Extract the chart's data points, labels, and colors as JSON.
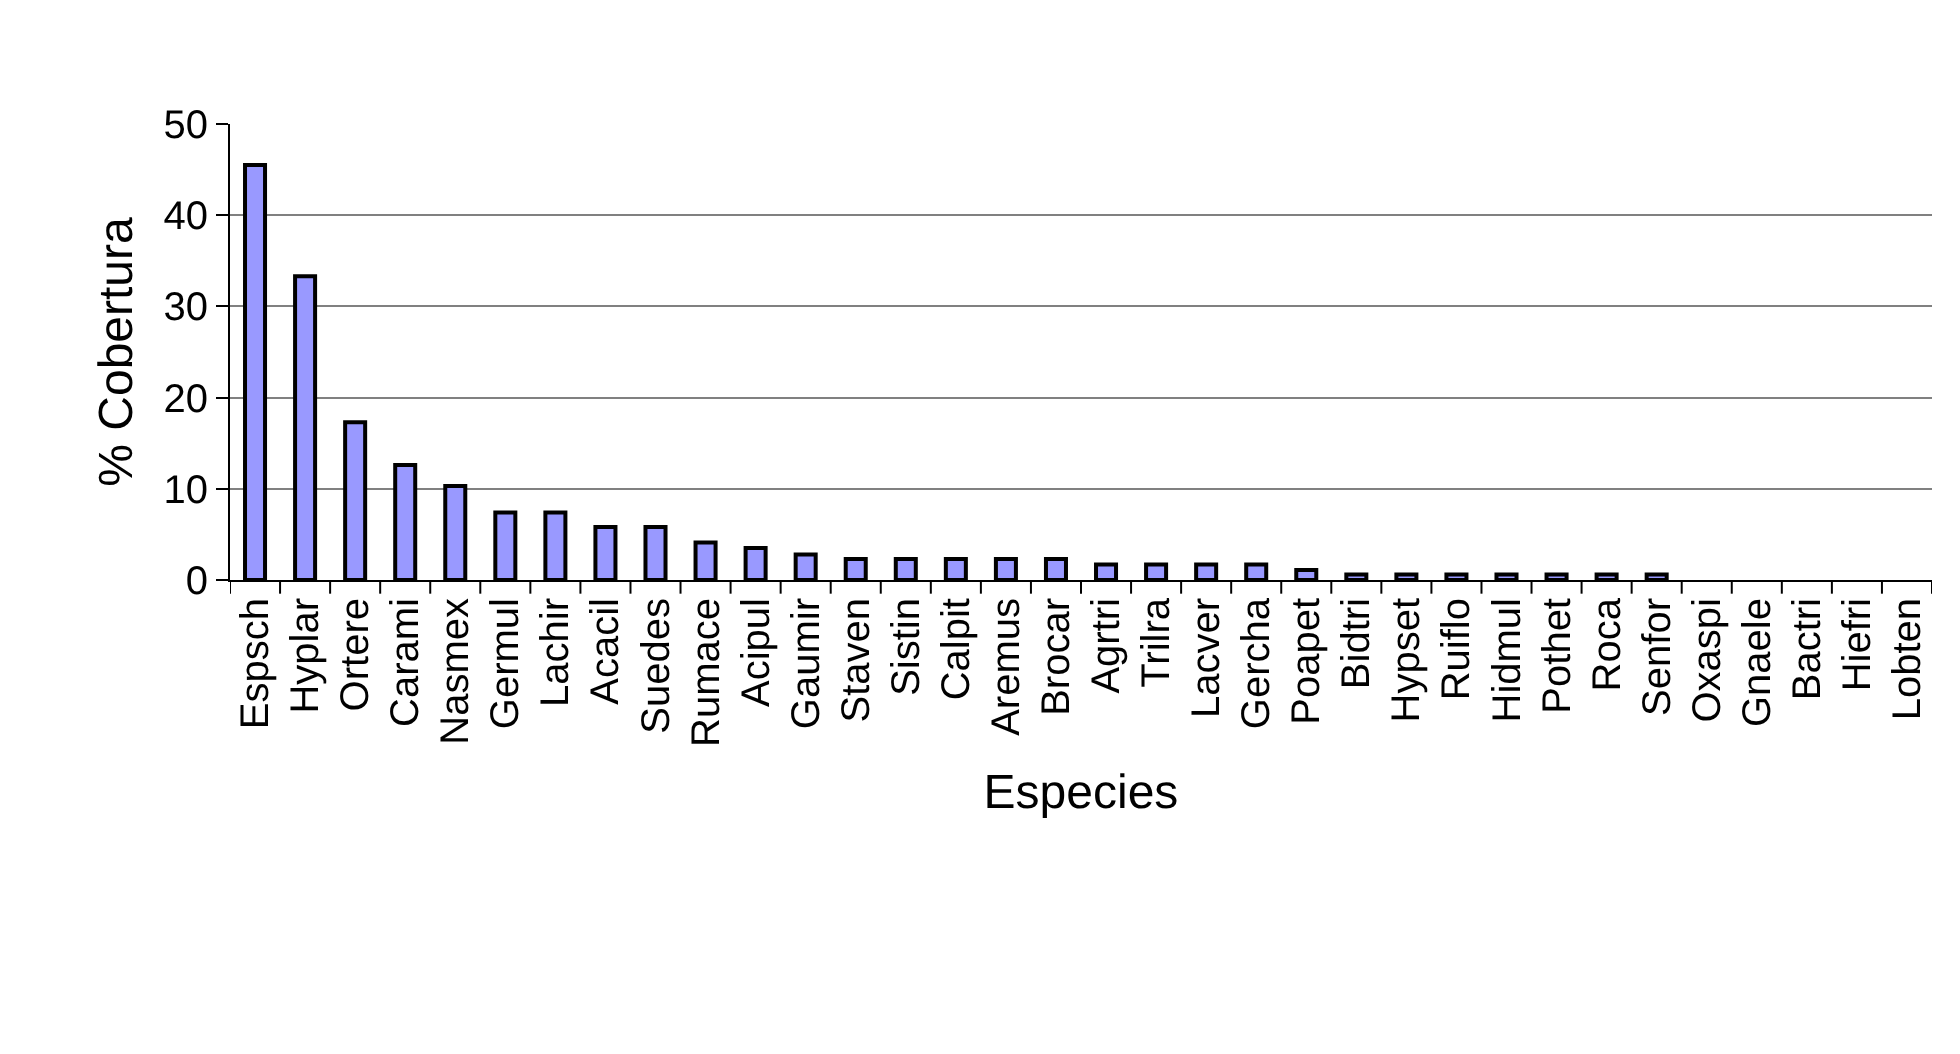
{
  "chart_data": {
    "type": "bar",
    "xlabel": "Especies",
    "ylabel": "% Cobertura",
    "categories": [
      "Espsch",
      "Hyplar",
      "Ortere",
      "Carami",
      "Nasmex",
      "Germul",
      "Lachir",
      "Acacil",
      "Suedes",
      "Rumace",
      "Acipul",
      "Gaumir",
      "Staven",
      "Sistin",
      "Calpit",
      "Aremus",
      "Brocar",
      "Agrtri",
      "Trilra",
      "Lacver",
      "Gercha",
      "Poapet",
      "Bidtri",
      "Hypset",
      "Ruiflo",
      "Hidmul",
      "Pothet",
      "Roca",
      "Senfor",
      "Oxaspi",
      "Gnaele",
      "Bactri",
      "Hiefri",
      "Lobten"
    ],
    "values": [
      45.5,
      33.3,
      17.3,
      12.6,
      10.3,
      7.4,
      7.4,
      5.8,
      5.8,
      4.1,
      3.5,
      2.8,
      2.3,
      2.3,
      2.3,
      2.3,
      2.3,
      1.7,
      1.7,
      1.7,
      1.7,
      1.1,
      0.6,
      0.6,
      0.6,
      0.6,
      0.6,
      0.6,
      0.6,
      0,
      0,
      0,
      0,
      0
    ],
    "color": "#9999ff",
    "ylim": [
      0,
      50
    ],
    "yticks": [
      0,
      10,
      20,
      30,
      40,
      50
    ],
    "grid": "y",
    "legend": false
  }
}
